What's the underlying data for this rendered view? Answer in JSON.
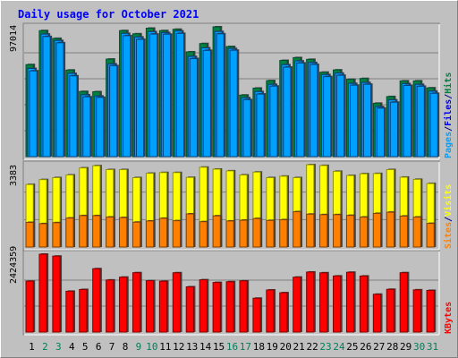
{
  "chart_data": {
    "type": "bar",
    "title": "Daily usage for October 2021",
    "categories": [
      "1",
      "2",
      "3",
      "4",
      "5",
      "6",
      "7",
      "8",
      "9",
      "10",
      "11",
      "12",
      "13",
      "14",
      "15",
      "16",
      "17",
      "18",
      "19",
      "20",
      "21",
      "22",
      "23",
      "24",
      "25",
      "26",
      "27",
      "28",
      "29",
      "30",
      "31"
    ],
    "weekend_days": [
      "2",
      "3",
      "9",
      "10",
      "16",
      "17",
      "23",
      "24",
      "30",
      "31"
    ],
    "panels": [
      {
        "name": "hits-files-pages",
        "ymax_label": "97014",
        "ymax": 97014,
        "legend": [
          {
            "label": "Pages",
            "color": "#00a0ff"
          },
          {
            "label": "/",
            "color": "#000080"
          },
          {
            "label": "Files",
            "color": "#0000ff"
          },
          {
            "label": "/",
            "color": "#000080"
          },
          {
            "label": "Hits",
            "color": "#008040"
          }
        ],
        "series": [
          {
            "name": "Hits",
            "color": "#008040",
            "values": [
              68800,
              94200,
              88400,
              64700,
              48700,
              48500,
              72900,
              94200,
              91800,
              96000,
              94200,
              95200,
              78300,
              84500,
              97014,
              82300,
              46000,
              51200,
              56800,
              71900,
              74000,
              72700,
              63100,
              64800,
              57800,
              58400,
              39900,
              44900,
              56600,
              56600,
              51400
            ]
          },
          {
            "name": "Files",
            "color": "#00a0ff",
            "values": [
              65900,
              91600,
              86800,
              62200,
              46200,
              45300,
              69300,
              92100,
              89400,
              93400,
              92700,
              93900,
              74900,
              81300,
              93500,
              80800,
              44000,
              48600,
              54000,
              68700,
              71500,
              70300,
              61300,
              62400,
              54700,
              55400,
              37400,
              42400,
              54500,
              54000,
              48900
            ]
          },
          {
            "name": "Pages",
            "color": "#00a0ff",
            "values": [
              64100,
              89800,
              85100,
              60400,
              44700,
              44300,
              68000,
              90400,
              87700,
              91600,
              91500,
              92100,
              73300,
              79400,
              91800,
              79500,
              42600,
              46800,
              52700,
              66900,
              70000,
              68900,
              59800,
              60800,
              53400,
              54100,
              36300,
              40700,
              53200,
              52600,
              47300
            ]
          }
        ]
      },
      {
        "name": "sites-visits",
        "ymax_label": "3383",
        "ymax": 3383,
        "legend": [
          {
            "label": "Sites",
            "color": "#ff8000"
          },
          {
            "label": "/",
            "color": "#000080"
          },
          {
            "label": "Visits",
            "color": "#ffff00"
          }
        ],
        "series": [
          {
            "name": "Visits",
            "color": "#ffff00",
            "values": [
              2570,
              2770,
              2850,
              2960,
              3250,
              3340,
              3180,
              3180,
              2850,
              3030,
              3060,
              3060,
              2860,
              3280,
              3200,
              3130,
              2960,
              3080,
              2850,
              2910,
              2850,
              3380,
              3350,
              3110,
              2940,
              3010,
              3020,
              3180,
              2870,
              2780,
              2610
            ]
          },
          {
            "name": "Sites",
            "color": "#ff8000",
            "values": [
              1010,
              960,
              1000,
              1190,
              1290,
              1290,
              1230,
              1210,
              1020,
              1070,
              1180,
              1080,
              1360,
              1040,
              1280,
              1070,
              1100,
              1170,
              1090,
              1120,
              1450,
              1350,
              1330,
              1330,
              1300,
              1230,
              1380,
              1430,
              1270,
              1230,
              970
            ]
          }
        ]
      },
      {
        "name": "kbytes",
        "ymax_label": "2424359",
        "ymax": 2424359,
        "legend": [
          {
            "label": "KBytes",
            "color": "#ff0000"
          }
        ],
        "series": [
          {
            "name": "KBytes",
            "color": "#ff0000",
            "values": [
              1585000,
              2424359,
              2364000,
              1271000,
              1325000,
              1972000,
              1621000,
              1709000,
              1848000,
              1598000,
              1582000,
              1846000,
              1408000,
              1627000,
              1544000,
              1567000,
              1594000,
              1053000,
              1310000,
              1225000,
              1709000,
              1868000,
              1845000,
              1746000,
              1862000,
              1744000,
              1177000,
              1331000,
              1848000,
              1314000,
              1297000
            ]
          }
        ]
      }
    ]
  }
}
